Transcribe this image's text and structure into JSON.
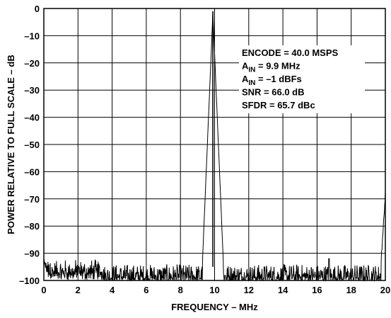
{
  "chart_data": {
    "type": "line",
    "xlabel": "FREQUENCY – MHz",
    "ylabel": "POWER RELATIVE TO FULL SCALE – dB",
    "xlim": [
      0,
      20
    ],
    "ylim": [
      -100,
      0
    ],
    "grid": true,
    "x_ticks": [
      0,
      2,
      4,
      6,
      8,
      10,
      12,
      14,
      16,
      18,
      20
    ],
    "x_tick_labels": [
      "0",
      "2",
      "4",
      "6",
      "8",
      "10",
      "12",
      "14",
      "16",
      "18",
      "20"
    ],
    "y_ticks": [
      0,
      -10,
      -20,
      -30,
      -40,
      -50,
      -60,
      -70,
      -80,
      -90,
      -100
    ],
    "y_tick_labels": [
      "0",
      "–10",
      "–20",
      "–30",
      "–40",
      "–50",
      "–60",
      "–70",
      "–80",
      "–90",
      "–100"
    ],
    "annotation": {
      "line1": "ENCODE = 40.0 MSPS",
      "line2_main": "A",
      "line2_sub": "IN",
      "line2_rest": " = 9.9 MHz",
      "line3_main": "A",
      "line3_sub": "IN",
      "line3_rest": " = –1 dBFs",
      "line4": "SNR = 66.0 dB",
      "line5": "SFDR = 65.7 dBc"
    },
    "series": [
      {
        "values": {
          "fundamental": {
            "x": 9.9,
            "y": -1
          },
          "dc_peak": {
            "x": 0.05,
            "y": -91
          },
          "edge_peak": {
            "x": 19.95,
            "y": -67
          },
          "noise_floor_min": -100,
          "noise_floor_max": -94,
          "spur_peak": {
            "x": 16.7,
            "y": -92
          }
        }
      }
    ]
  }
}
